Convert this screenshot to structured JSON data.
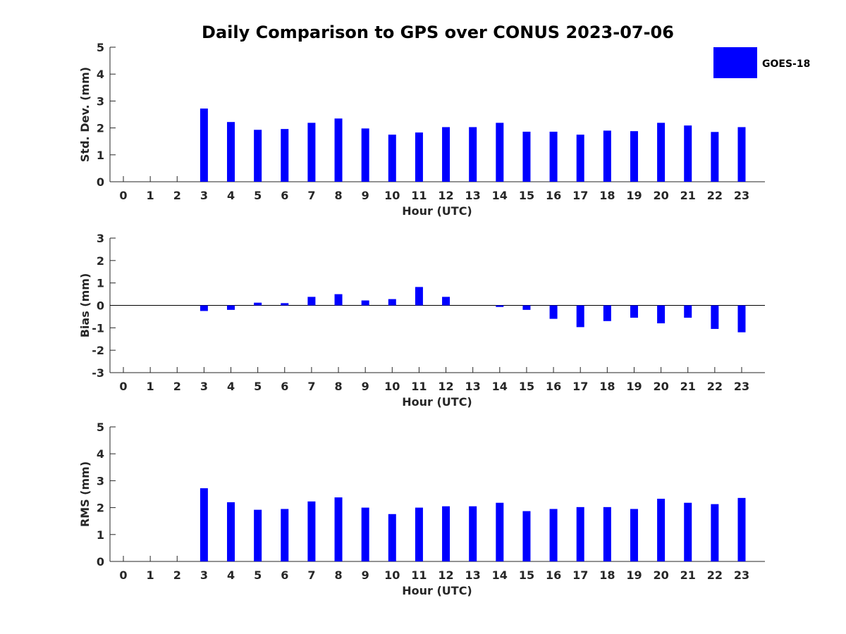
{
  "title": "Daily Comparison to GPS over CONUS 2023-07-06",
  "legend": {
    "label": "GOES-18",
    "color": "#0000ff",
    "placement": "top-right"
  },
  "chart_data": [
    {
      "type": "bar",
      "ylabel": "Std. Dev. (mm)",
      "xlabel": "Hour (UTC)",
      "ylim": [
        0,
        5
      ],
      "yticks": [
        0,
        1,
        2,
        3,
        4,
        5
      ],
      "categories": [
        "0",
        "1",
        "2",
        "3",
        "4",
        "5",
        "6",
        "7",
        "8",
        "9",
        "10",
        "11",
        "12",
        "13",
        "14",
        "15",
        "16",
        "17",
        "18",
        "19",
        "20",
        "21",
        "22",
        "23"
      ],
      "series": [
        {
          "values": [
            null,
            null,
            null,
            2.72,
            2.22,
            1.93,
            1.96,
            2.19,
            2.35,
            1.98,
            1.75,
            1.83,
            2.03,
            2.03,
            2.19,
            1.86,
            1.86,
            1.75,
            1.9,
            1.88,
            2.19,
            2.09,
            1.85,
            2.03
          ]
        }
      ]
    },
    {
      "type": "bar",
      "ylabel": "Bias (mm)",
      "xlabel": "Hour (UTC)",
      "ylim": [
        -3,
        3
      ],
      "yticks": [
        -3,
        -2,
        -1,
        0,
        1,
        2,
        3
      ],
      "categories": [
        "0",
        "1",
        "2",
        "3",
        "4",
        "5",
        "6",
        "7",
        "8",
        "9",
        "10",
        "11",
        "12",
        "13",
        "14",
        "15",
        "16",
        "17",
        "18",
        "19",
        "20",
        "21",
        "22",
        "23"
      ],
      "series": [
        {
          "values": [
            null,
            null,
            null,
            -0.25,
            -0.2,
            0.12,
            0.1,
            0.38,
            0.5,
            0.22,
            0.28,
            0.82,
            0.38,
            0.0,
            -0.07,
            -0.2,
            -0.6,
            -0.97,
            -0.7,
            -0.55,
            -0.8,
            -0.55,
            -1.05,
            -1.2
          ]
        }
      ]
    },
    {
      "type": "bar",
      "ylabel": "RMS (mm)",
      "xlabel": "Hour (UTC)",
      "ylim": [
        0,
        5
      ],
      "yticks": [
        0,
        1,
        2,
        3,
        4,
        5
      ],
      "categories": [
        "0",
        "1",
        "2",
        "3",
        "4",
        "5",
        "6",
        "7",
        "8",
        "9",
        "10",
        "11",
        "12",
        "13",
        "14",
        "15",
        "16",
        "17",
        "18",
        "19",
        "20",
        "21",
        "22",
        "23"
      ],
      "series": [
        {
          "values": [
            null,
            null,
            null,
            2.72,
            2.2,
            1.92,
            1.95,
            2.23,
            2.38,
            2.0,
            1.76,
            2.0,
            2.05,
            2.05,
            2.18,
            1.87,
            1.95,
            2.02,
            2.02,
            1.95,
            2.33,
            2.18,
            2.13,
            2.36
          ]
        }
      ]
    }
  ]
}
